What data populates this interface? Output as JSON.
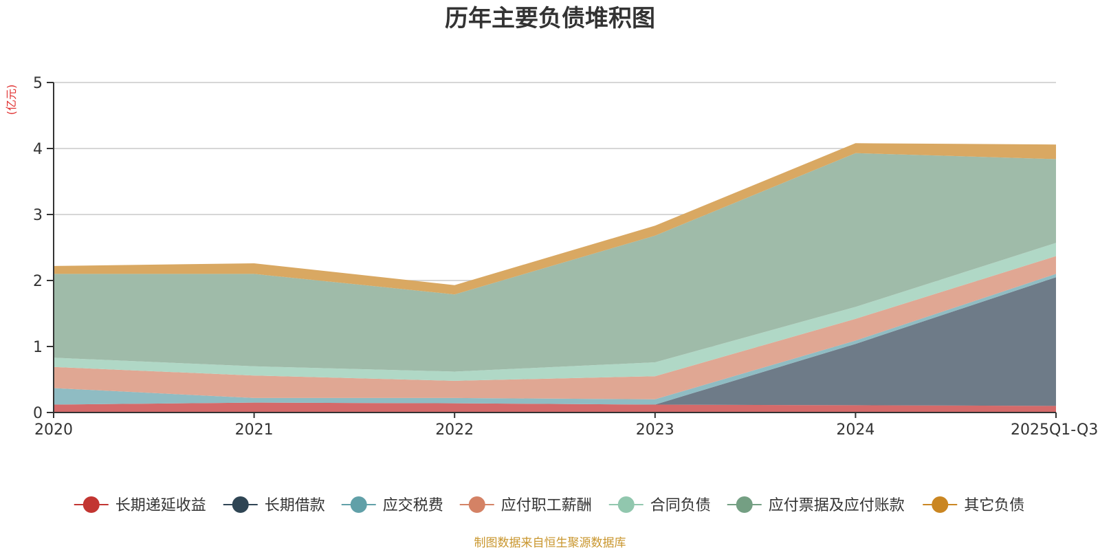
{
  "chart_data": {
    "type": "area",
    "stacked": true,
    "title": "历年主要负债堆积图",
    "ylabel": "(亿元)",
    "xlabel": "",
    "ylim": [
      0,
      5
    ],
    "yticks": [
      "0",
      "1",
      "2",
      "3",
      "4",
      "5"
    ],
    "grid": true,
    "legend_position": "bottom",
    "categories": [
      "2020",
      "2021",
      "2022",
      "2023",
      "2024",
      "2025Q1-Q3"
    ],
    "series": [
      {
        "name": "长期递延收益",
        "color": "#c23531",
        "fill": "#d46a6a",
        "values": [
          0.12,
          0.15,
          0.14,
          0.12,
          0.11,
          0.1
        ]
      },
      {
        "name": "长期借款",
        "color": "#2f4554",
        "fill": "#6e7b88",
        "values": [
          0.0,
          0.0,
          0.0,
          0.0,
          0.93,
          1.95
        ]
      },
      {
        "name": "应交税费",
        "color": "#61a0a8",
        "fill": "#8fbcc3",
        "values": [
          0.25,
          0.07,
          0.08,
          0.08,
          0.05,
          0.05
        ]
      },
      {
        "name": "应付职工薪酬",
        "color": "#d48265",
        "fill": "#e0a793",
        "values": [
          0.32,
          0.34,
          0.26,
          0.35,
          0.33,
          0.27
        ]
      },
      {
        "name": "合同负债",
        "color": "#91c7ae",
        "fill": "#b0d8c6",
        "values": [
          0.14,
          0.14,
          0.14,
          0.21,
          0.18,
          0.2
        ]
      },
      {
        "name": "应付票据及应付账款",
        "color": "#749f83",
        "fill": "#9fbba9",
        "values": [
          1.27,
          1.4,
          1.17,
          1.92,
          2.33,
          1.27
        ]
      },
      {
        "name": "其它负债",
        "color": "#ca8622",
        "fill": "#d9a862",
        "values": [
          0.12,
          0.16,
          0.14,
          0.15,
          0.15,
          0.22
        ]
      }
    ],
    "source": "制图数据来自恒生聚源数据库"
  }
}
